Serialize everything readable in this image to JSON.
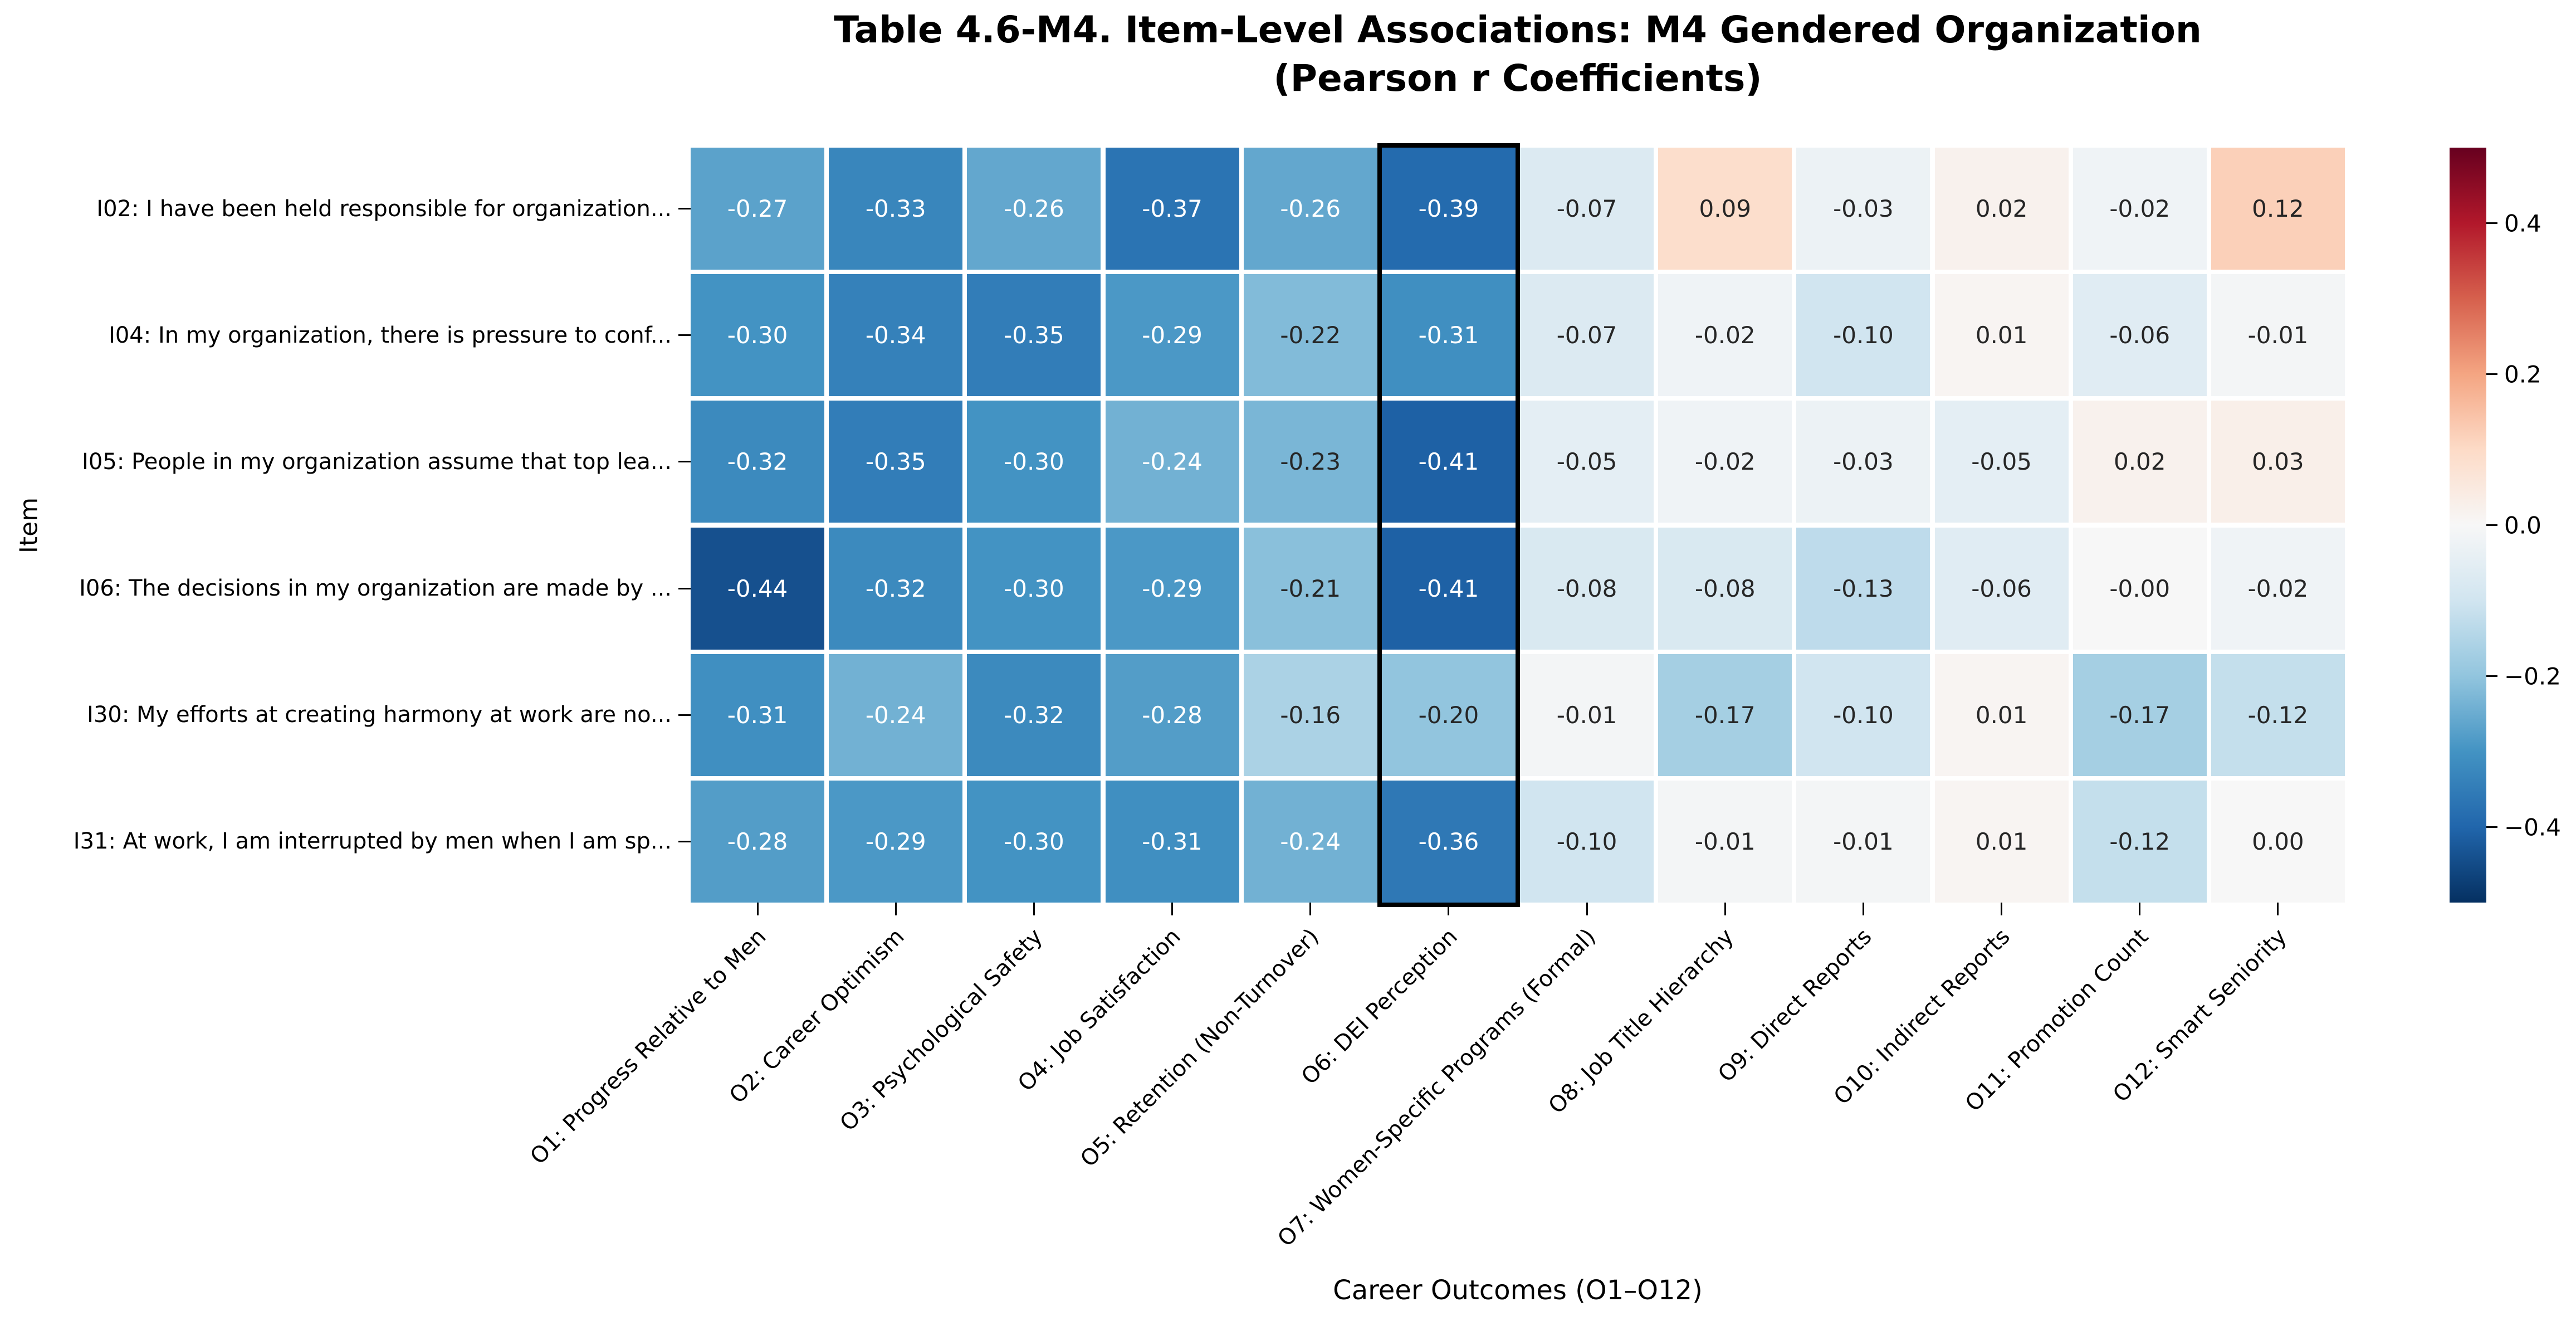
{
  "figure": {
    "title_line1": "Table 4.6-M4. Item-Level Associations: M4 Gendered Organization",
    "title_line2": "(Pearson r Coefficients)",
    "xlabel": "Career Outcomes (O1–O12)",
    "ylabel": "Item"
  },
  "chart_data": {
    "type": "heatmap",
    "title": "Table 4.6-M4. Item-Level Associations: M4 Gendered Organization (Pearson r Coefficients)",
    "xlabel": "Career Outcomes (O1–O12)",
    "ylabel": "Item",
    "colormap": "RdBu_r",
    "vmin": -0.5,
    "vmax": 0.5,
    "grid_line_color": "#ffffff",
    "highlighted_column_index": 5,
    "highlight_border_color": "#000000",
    "columns": [
      "O1: Progress Relative to Men",
      "O2: Career Optimism",
      "O3: Psychological Safety",
      "O4: Job Satisfaction",
      "O5: Retention (Non-Turnover)",
      "O6: DEI Perception",
      "O7: Women-Specific Programs (Formal)",
      "O8: Job Title Hierarchy",
      "O9: Direct Reports",
      "O10: Indirect Reports",
      "O11: Promotion Count",
      "O12: Smart Seniority"
    ],
    "rows": [
      "I02: I have been held responsible for organization...",
      "I04: In my organization, there is pressure to conf...",
      "I05: People in my organization assume that top lea...",
      "I06: The decisions in my organization are made by ...",
      "I30: My efforts at creating harmony at work are no...",
      "I31: At work, I am interrupted by men when I am sp..."
    ],
    "values": [
      [
        -0.27,
        -0.33,
        -0.26,
        -0.37,
        -0.26,
        -0.39,
        -0.07,
        0.09,
        -0.03,
        0.02,
        -0.02,
        0.12
      ],
      [
        -0.3,
        -0.34,
        -0.35,
        -0.29,
        -0.22,
        -0.31,
        -0.07,
        -0.02,
        -0.1,
        0.01,
        -0.06,
        -0.01
      ],
      [
        -0.32,
        -0.35,
        -0.3,
        -0.24,
        -0.23,
        -0.41,
        -0.05,
        -0.02,
        -0.03,
        -0.05,
        0.02,
        0.03
      ],
      [
        -0.44,
        -0.32,
        -0.3,
        -0.29,
        -0.21,
        -0.41,
        -0.08,
        -0.08,
        -0.13,
        -0.06,
        -0.0,
        -0.02
      ],
      [
        -0.31,
        -0.24,
        -0.32,
        -0.28,
        -0.16,
        -0.2,
        -0.01,
        -0.17,
        -0.1,
        0.01,
        -0.17,
        -0.12
      ],
      [
        -0.28,
        -0.29,
        -0.3,
        -0.31,
        -0.24,
        -0.36,
        -0.1,
        -0.01,
        -0.01,
        0.01,
        -0.12,
        0.0
      ]
    ],
    "cell_labels": [
      [
        "-0.27",
        "-0.33",
        "-0.26",
        "-0.37",
        "-0.26",
        "-0.39",
        "-0.07",
        "0.09",
        "-0.03",
        "0.02",
        "-0.02",
        "0.12"
      ],
      [
        "-0.30",
        "-0.34",
        "-0.35",
        "-0.29",
        "-0.22",
        "-0.31",
        "-0.07",
        "-0.02",
        "-0.10",
        "0.01",
        "-0.06",
        "-0.01"
      ],
      [
        "-0.32",
        "-0.35",
        "-0.30",
        "-0.24",
        "-0.23",
        "-0.41",
        "-0.05",
        "-0.02",
        "-0.03",
        "-0.05",
        "0.02",
        "0.03"
      ],
      [
        "-0.44",
        "-0.32",
        "-0.30",
        "-0.29",
        "-0.21",
        "-0.41",
        "-0.08",
        "-0.08",
        "-0.13",
        "-0.06",
        "-0.00",
        "-0.02"
      ],
      [
        "-0.31",
        "-0.24",
        "-0.32",
        "-0.28",
        "-0.16",
        "-0.20",
        "-0.01",
        "-0.17",
        "-0.10",
        "0.01",
        "-0.17",
        "-0.12"
      ],
      [
        "-0.28",
        "-0.29",
        "-0.30",
        "-0.31",
        "-0.24",
        "-0.36",
        "-0.10",
        "-0.01",
        "-0.01",
        "0.01",
        "-0.12",
        "0.00"
      ]
    ],
    "colorbar_ticks": [
      {
        "label": "0.4",
        "value": 0.4
      },
      {
        "label": "0.2",
        "value": 0.2
      },
      {
        "label": "0.0",
        "value": 0.0
      },
      {
        "label": "−0.2",
        "value": -0.2
      },
      {
        "label": "−0.4",
        "value": -0.4
      }
    ]
  }
}
